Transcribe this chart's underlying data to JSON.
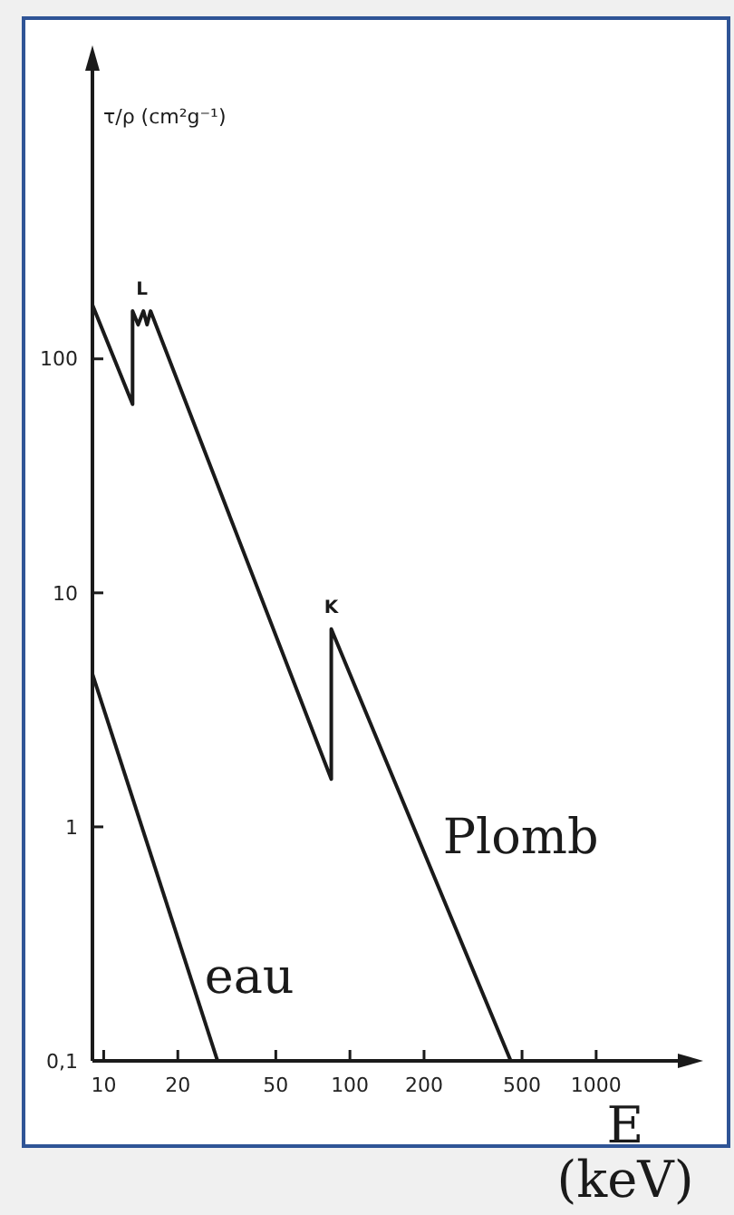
{
  "chart_data": {
    "type": "line",
    "xlabel": "E (keV)",
    "ylabel": "τ/ρ (cm²g⁻¹)",
    "log": "xy",
    "xlim": [
      9,
      2500
    ],
    "ylim": [
      0.1,
      2000
    ],
    "xticks": [
      10,
      20,
      50,
      100,
      200,
      500,
      1000
    ],
    "yticks": [
      {
        "value": 0.1,
        "label": "0,1"
      },
      1,
      10,
      100
    ],
    "grid": false,
    "legend": false,
    "marker": "none",
    "line_style": "solid",
    "series": [
      {
        "name": "Plomb",
        "color": "#1a1a1a",
        "x": [
          9,
          13.1,
          13.1,
          13.8,
          14.5,
          15,
          15.5,
          84,
          84,
          450
        ],
        "values": [
          170,
          64,
          160,
          140,
          160,
          140,
          160,
          1.6,
          7,
          0.1
        ]
      },
      {
        "name": "eau",
        "color": "#1a1a1a",
        "x": [
          9,
          29
        ],
        "values": [
          4.5,
          0.1
        ]
      }
    ],
    "annotations": [
      {
        "text": "L",
        "x": 14.3,
        "y": 160
      },
      {
        "text": "K",
        "x": 84,
        "y": 7
      }
    ]
  }
}
